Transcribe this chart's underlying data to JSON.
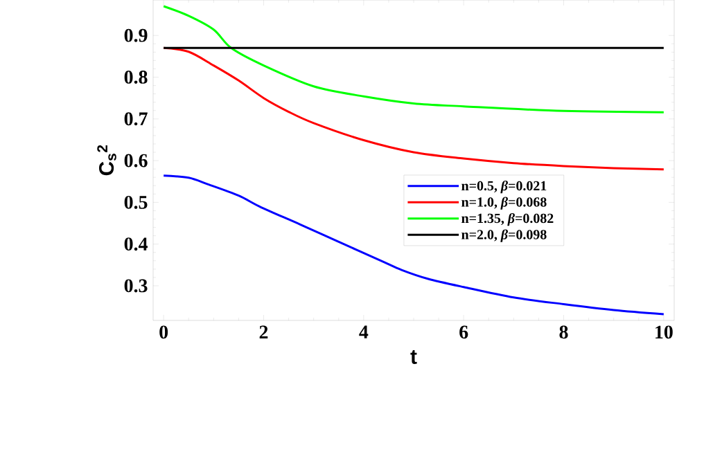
{
  "chart_data": {
    "type": "line",
    "xlabel": "t",
    "ylabel": "C$_{s}$$^{2}$",
    "xlim": [
      -0.21,
      10.21
    ],
    "ylim": [
      0.217,
      0.985
    ],
    "xticks": [
      0,
      2,
      4,
      6,
      8,
      10
    ],
    "yticks": [
      0.3,
      0.4,
      0.5,
      0.6,
      0.7,
      0.8,
      0.9
    ],
    "legend": "right",
    "grid": false,
    "marker": "none",
    "line_style": "solid",
    "series": [
      {
        "name": "n=0.5, *β*=0.021",
        "color": "#0000ff",
        "x": [
          0,
          0.5,
          0.89,
          1.5,
          1.95,
          2.73,
          3.47,
          4.35,
          4.76,
          5.28,
          6,
          7,
          8,
          9,
          10
        ],
        "values": [
          0.564,
          0.559,
          0.543,
          0.516,
          0.488,
          0.447,
          0.407,
          0.36,
          0.338,
          0.317,
          0.297,
          0.272,
          0.256,
          0.242,
          0.232
        ]
      },
      {
        "name": "n=1.0, *β*=0.068",
        "color": "#ff0000",
        "x": [
          0,
          0.5,
          1,
          1.5,
          2,
          2.5,
          3,
          4,
          5,
          6,
          7,
          8,
          9,
          10
        ],
        "values": [
          0.87,
          0.861,
          0.828,
          0.792,
          0.75,
          0.717,
          0.69,
          0.649,
          0.62,
          0.605,
          0.594,
          0.587,
          0.582,
          0.579
        ]
      },
      {
        "name": "n=1.35, *β*=0.082",
        "color": "#00ff00",
        "x": [
          0,
          0.5,
          1,
          1.35,
          2,
          3,
          4,
          5,
          6,
          8,
          10
        ],
        "values": [
          0.97,
          0.947,
          0.914,
          0.87,
          0.828,
          0.778,
          0.754,
          0.737,
          0.73,
          0.719,
          0.716
        ]
      },
      {
        "name": "n=2.0, *β*=0.098",
        "color": "#000000",
        "x": [
          0,
          10
        ],
        "values": [
          0.87,
          0.87
        ]
      }
    ]
  }
}
